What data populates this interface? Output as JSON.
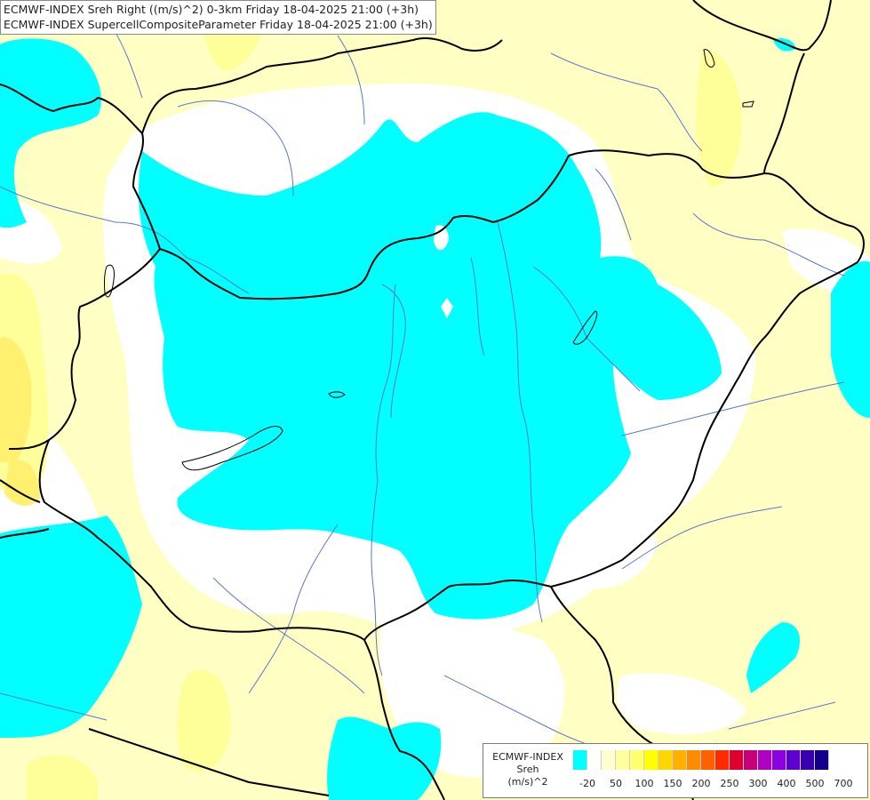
{
  "header": {
    "line1": "ECMWF-INDEX Sreh Right ((m/s)^2) 0-3km Friday 18-04-2025 21:00 (+3h)",
    "line2": "ECMWF-INDEX SupercellCompositeParameter Friday 18-04-2025 21:00 (+3h)"
  },
  "legend": {
    "title1": "ECMWF-INDEX",
    "title2": "Sreh",
    "title3": "(m/s)^2",
    "colors": [
      "#00ffff",
      "#ffffff",
      "#ffffd0",
      "#ffffa0",
      "#ffff70",
      "#ffff00",
      "#ffd700",
      "#ffb000",
      "#ff8c00",
      "#ff6000",
      "#ff2a00",
      "#e00030",
      "#c80078",
      "#b000c0",
      "#8a00e0",
      "#6000d0",
      "#3a00b0",
      "#10008a"
    ],
    "tick_labels": [
      "-20",
      "50",
      "100",
      "150",
      "200",
      "250",
      "300",
      "400",
      "500",
      "700"
    ]
  },
  "palette": {
    "cyan": "#00ffff",
    "white": "#ffffff",
    "pale_yellow": "#ffffc4",
    "yellow": "#ffff90",
    "border": "#000000",
    "river": "#5a78c8"
  }
}
